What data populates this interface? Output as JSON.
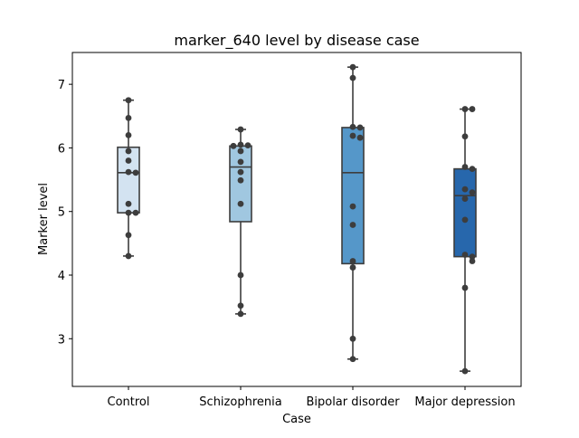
{
  "chart_data": {
    "type": "box",
    "title": "marker_640 level by disease case",
    "xlabel": "Case",
    "ylabel": "Marker level",
    "ylim": [
      2.25,
      7.5
    ],
    "yticks": [
      3,
      4,
      5,
      6,
      7
    ],
    "categories": [
      "Control",
      "Schizophrenia",
      "Bipolar disorder",
      "Major depression"
    ],
    "colors": [
      "#d3e3f1",
      "#a0c7e0",
      "#5597c9",
      "#2767ac"
    ],
    "boxes": [
      {
        "min": 4.3,
        "q1": 4.98,
        "median": 5.61,
        "q3": 6.01,
        "max": 6.75
      },
      {
        "min": 3.39,
        "q1": 4.84,
        "median": 5.7,
        "q3": 6.03,
        "max": 6.29
      },
      {
        "min": 2.68,
        "q1": 4.18,
        "median": 5.61,
        "q3": 6.32,
        "max": 7.27
      },
      {
        "min": 2.49,
        "q1": 4.29,
        "median": 5.25,
        "q3": 5.67,
        "max": 6.61
      }
    ],
    "points": [
      [
        6.75,
        6.47,
        6.2,
        5.95,
        5.8,
        5.62,
        5.61,
        5.12,
        4.98,
        4.98,
        4.63,
        4.3
      ],
      [
        6.29,
        6.05,
        6.04,
        6.03,
        5.95,
        5.78,
        5.62,
        5.49,
        5.12,
        4.0,
        3.52,
        3.39
      ],
      [
        7.27,
        7.1,
        6.33,
        6.32,
        6.19,
        6.16,
        5.08,
        4.79,
        4.22,
        4.12,
        3.0,
        2.68
      ],
      [
        6.61,
        6.61,
        6.18,
        5.7,
        5.67,
        5.35,
        5.3,
        5.2,
        4.87,
        4.32,
        4.29,
        4.22,
        3.8,
        2.49
      ]
    ]
  }
}
